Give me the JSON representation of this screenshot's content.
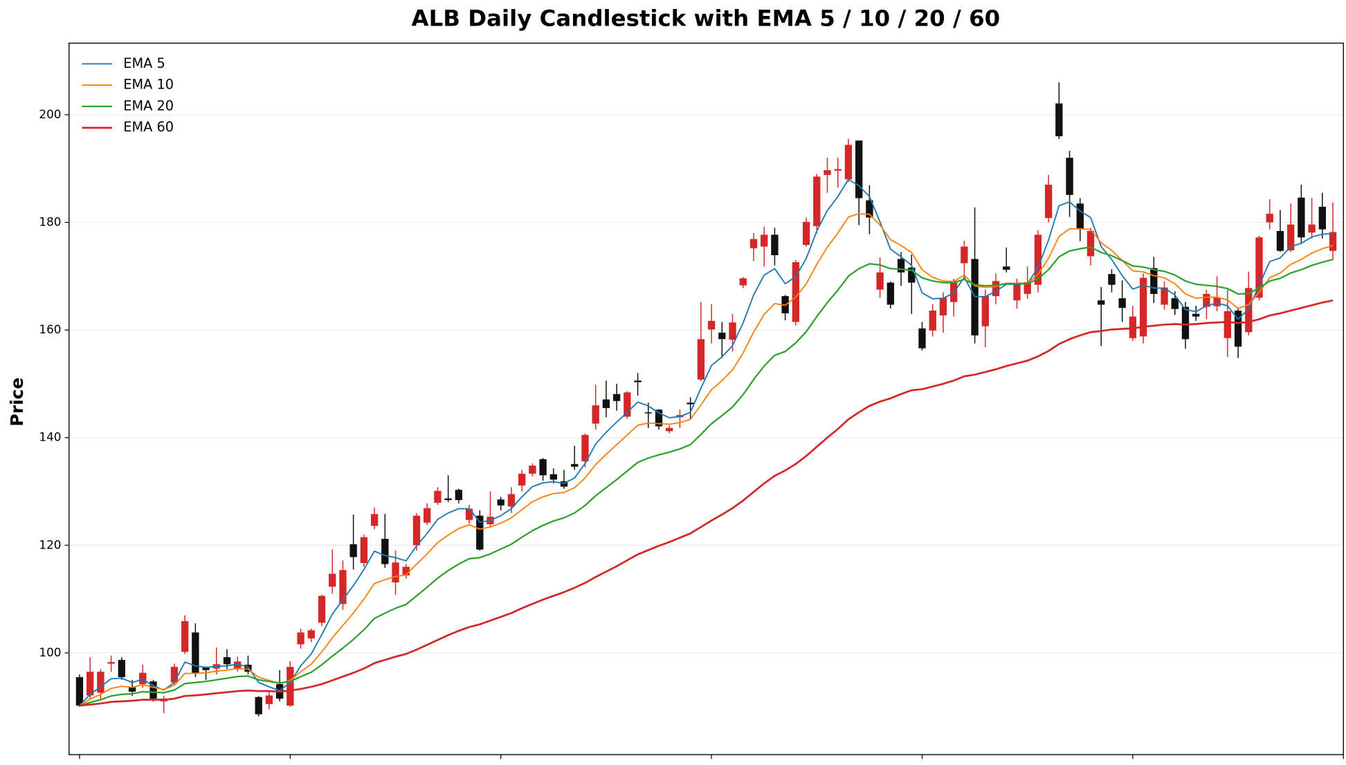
{
  "chart_data": {
    "type": "candlestick",
    "title": "ALB Daily Candlestick with EMA 5 / 10 / 20 / 60",
    "ylabel": "Price",
    "up_color": "#d62728",
    "down_color": "#111111",
    "open": [
      95.5,
      92.1,
      92.6,
      98,
      98.7,
      93.6,
      94.2,
      94.7,
      91,
      94.5,
      100.2,
      103.8,
      97.4,
      97.1,
      99.2,
      97,
      97.8,
      91.8,
      90.5,
      94.2,
      90.2,
      101.6,
      102.7,
      105.6,
      112.3,
      109.1,
      120.2,
      116.7,
      123.6,
      121.2,
      113.1,
      114.4,
      120,
      124.2,
      127.9,
      128.7,
      130.3,
      124.7,
      125.5,
      123.9,
      128.5,
      127.2,
      131.1,
      133.3,
      136,
      133.2,
      131.9,
      135.1,
      135.6,
      142.6,
      147.1,
      148.1,
      143.9,
      150.6,
      144.7,
      145.2,
      141.2,
      143.8,
      146.5,
      150.8,
      160.1,
      159.5,
      158.2,
      168.3,
      175.2,
      175.5,
      177.7,
      166.3,
      161.5,
      175.8,
      179.3,
      188.8,
      189.6,
      188,
      195.2,
      184.1,
      167.5,
      168.8,
      173.2,
      171.6,
      160.3,
      159.9,
      162.7,
      165.2,
      172.4,
      173.2,
      160.7,
      166.3,
      171.8,
      165.5,
      166.7,
      168.4,
      180.8,
      202.1,
      192,
      183.5,
      173.7,
      165.5,
      170.4,
      165.9,
      158.5,
      158.8,
      171.5,
      164.7,
      165.9,
      164.3,
      163,
      164.3,
      164.4,
      158.5,
      163.6,
      159.6,
      166,
      180,
      178.4,
      174.8,
      184.6,
      178.1,
      182.9,
      174.7
    ],
    "high": [
      96,
      99.2,
      97,
      99.5,
      99.2,
      95,
      97.8,
      95,
      92,
      98,
      107,
      105.5,
      97.5,
      101,
      100.7,
      99.3,
      99.5,
      92,
      93,
      96.8,
      98.5,
      104.5,
      104.5,
      110.8,
      119.2,
      117.2,
      125.7,
      122,
      127,
      125.8,
      119,
      116.5,
      126,
      127.8,
      130.8,
      133,
      130.5,
      127.5,
      126.5,
      130,
      129,
      130.8,
      134,
      135.2,
      136.2,
      134.3,
      134,
      138.5,
      140.8,
      149.8,
      150.6,
      150,
      148.6,
      152,
      146.5,
      145.3,
      142.3,
      145.2,
      147.5,
      165.2,
      164.8,
      161.5,
      163,
      169.8,
      178,
      179.2,
      179,
      166.5,
      173,
      180.9,
      189,
      192,
      192,
      195.5,
      195.2,
      186.9,
      173.5,
      169,
      174.5,
      174,
      161.5,
      164.8,
      167,
      169.5,
      176.6,
      182.8,
      167.5,
      170.5,
      175.3,
      169.5,
      171.8,
      178.5,
      188.8,
      206,
      193.3,
      184.5,
      179,
      168,
      171.3,
      169.2,
      164.5,
      170.5,
      173.6,
      169,
      167.2,
      165.2,
      164.5,
      167.5,
      170,
      167.5,
      164.2,
      170.8,
      177.5,
      184.3,
      182.3,
      183.5,
      187,
      184.5,
      185.5,
      183.7
    ],
    "low": [
      90,
      91.5,
      91.5,
      96.5,
      95,
      92,
      93.5,
      91,
      88.8,
      94,
      99.8,
      95.5,
      95,
      96,
      97,
      96.5,
      96,
      88.2,
      89.5,
      91,
      90,
      100.8,
      102,
      105,
      111,
      108,
      115.5,
      116,
      123,
      115.8,
      110.8,
      113.8,
      119,
      123.8,
      127.5,
      128,
      127.8,
      124,
      119,
      123.5,
      126.5,
      126,
      130,
      132.8,
      132,
      131.5,
      130.5,
      134,
      134.5,
      141.5,
      143.8,
      145,
      143.5,
      147.8,
      141.8,
      141.5,
      140.8,
      141.8,
      143.5,
      150.5,
      157.5,
      154.8,
      156,
      167.8,
      172.8,
      171.8,
      172,
      161.8,
      160.8,
      175.5,
      178,
      185.5,
      186.5,
      187.5,
      179.5,
      177.8,
      166,
      164,
      168.2,
      163,
      156.2,
      158.8,
      159.5,
      162.5,
      169.8,
      157.5,
      156.8,
      164.8,
      170.7,
      164,
      165.8,
      167,
      180,
      195.5,
      181,
      176.5,
      172,
      157,
      167,
      161.5,
      158,
      157.5,
      165,
      163.8,
      162.8,
      156.5,
      161.7,
      162,
      163.5,
      155,
      154.8,
      159,
      165.5,
      178.7,
      174.5,
      174.5,
      176,
      177,
      177,
      173
    ],
    "close": [
      90.2,
      96.5,
      96.5,
      98.3,
      95.5,
      92.8,
      96.3,
      91.5,
      91.5,
      97.4,
      105.9,
      96.3,
      96.8,
      97.9,
      97.9,
      98.4,
      96.5,
      88.6,
      92.1,
      91.5,
      97.4,
      103.8,
      104.2,
      110.6,
      114.7,
      115.4,
      117.8,
      121.5,
      125.8,
      116.5,
      116.8,
      116,
      125.5,
      126.9,
      130.1,
      128.4,
      128.4,
      126.8,
      119.2,
      125.3,
      127.4,
      129.5,
      133.3,
      134.8,
      133,
      132.2,
      130.9,
      134.6,
      140.5,
      146,
      145.5,
      146.8,
      148.4,
      150.3,
      144.6,
      142.1,
      141.8,
      144.2,
      146.2,
      158.3,
      161.7,
      158.3,
      161.4,
      169.6,
      176.9,
      177.7,
      173.9,
      163.1,
      172.6,
      180.1,
      188.5,
      189.7,
      189.9,
      194.4,
      184.5,
      180.9,
      170.7,
      164.7,
      170.7,
      168.8,
      156.6,
      163.6,
      166,
      168.8,
      175.5,
      159,
      166.3,
      169.1,
      171.2,
      168.6,
      168.9,
      177.7,
      187,
      196,
      185.1,
      178.7,
      178.4,
      164.7,
      168.4,
      164.1,
      162.5,
      169.7,
      166.7,
      167.9,
      163.9,
      158.3,
      162.5,
      166.7,
      166,
      163.5,
      156.9,
      167.8,
      177.2,
      181.6,
      174.7,
      179.6,
      177.2,
      179.6,
      178.7,
      178.2
    ],
    "series": [
      {
        "name": "EMA 5",
        "color": "#1f77b4",
        "width": 1.5,
        "values": [
          90.2,
          92.3,
          93.7,
          95.2,
          95.3,
          94.5,
          95.1,
          93.9,
          93.1,
          94.5,
          98.3,
          97.6,
          97.3,
          97.5,
          97.6,
          97.9,
          97.4,
          94.5,
          93.7,
          93.0,
          94.5,
          97.6,
          99.8,
          103.4,
          107.2,
          109.9,
          112.5,
          115.5,
          118.9,
          118.1,
          117.7,
          117.1,
          119.9,
          122.2,
          124.8,
          126.0,
          126.8,
          126.8,
          124.3,
          124.6,
          125.5,
          126.8,
          129.0,
          130.9,
          131.6,
          131.8,
          131.5,
          132.5,
          135.2,
          138.8,
          141.0,
          142.9,
          144.7,
          146.6,
          145.9,
          144.6,
          143.7,
          143.9,
          144.7,
          149.2,
          153.4,
          155.0,
          157.1,
          161.3,
          166.5,
          170.2,
          171.4,
          168.6,
          169.9,
          173.3,
          178.4,
          182.2,
          184.8,
          188.0,
          186.8,
          184.8,
          180.1,
          175.0,
          173.6,
          172.0,
          166.9,
          165.8,
          165.9,
          166.9,
          169.8,
          166.2,
          166.2,
          167.2,
          168.5,
          168.5,
          168.6,
          171.6,
          176.7,
          183.1,
          183.8,
          182.1,
          180.9,
          175.5,
          173.1,
          170.1,
          167.6,
          168.3,
          167.8,
          167.8,
          166.5,
          163.8,
          163.4,
          164.5,
          165.0,
          164.5,
          162.0,
          163.9,
          168.3,
          172.7,
          173.4,
          175.5,
          176.1,
          177.3,
          177.8,
          177.9
        ]
      },
      {
        "name": "EMA 10",
        "color": "#ff7f0e",
        "width": 1.5,
        "values": [
          90.2,
          91.4,
          92.3,
          93.4,
          93.8,
          93.6,
          94.1,
          93.6,
          93.2,
          94.0,
          96.2,
          96.2,
          96.3,
          96.6,
          96.8,
          97.1,
          97.0,
          95.5,
          94.9,
          94.3,
          94.9,
          96.5,
          97.9,
          100.2,
          102.8,
          105.1,
          107.4,
          110.0,
          112.9,
          113.6,
          114.2,
          114.5,
          116.5,
          118.4,
          120.5,
          121.9,
          123.1,
          123.8,
          123.0,
          123.4,
          124.1,
          125.1,
          126.6,
          128.1,
          129.0,
          129.6,
          129.8,
          130.7,
          132.5,
          135.0,
          136.9,
          138.7,
          140.5,
          142.3,
          142.7,
          142.6,
          142.5,
          142.8,
          143.4,
          146.1,
          148.9,
          150.6,
          152.6,
          155.7,
          159.6,
          162.9,
          164.9,
          164.6,
          166.1,
          168.6,
          172.2,
          175.4,
          178.0,
          181.0,
          181.6,
          181.5,
          179.5,
          176.8,
          175.7,
          174.4,
          171.2,
          169.8,
          169.1,
          169.0,
          170.2,
          168.2,
          167.9,
          168.1,
          168.7,
          168.7,
          168.7,
          170.3,
          173.3,
          177.4,
          178.8,
          178.8,
          178.7,
          176.2,
          174.8,
          172.9,
          171.0,
          170.8,
          170.1,
          169.7,
          168.6,
          166.7,
          165.9,
          166.1,
          166.1,
          165.6,
          164.0,
          164.7,
          167.0,
          169.7,
          170.6,
          172.2,
          173.1,
          174.3,
          175.1,
          175.7
        ]
      },
      {
        "name": "EMA 20",
        "color": "#2ca02c",
        "width": 1.8,
        "values": [
          90.2,
          90.8,
          91.3,
          92.0,
          92.3,
          92.4,
          92.8,
          92.7,
          92.6,
          93.1,
          94.3,
          94.5,
          94.7,
          95.0,
          95.3,
          95.6,
          95.7,
          95.0,
          94.7,
          94.4,
          94.7,
          95.6,
          96.4,
          97.8,
          99.4,
          100.9,
          102.5,
          104.3,
          106.4,
          107.4,
          108.3,
          109.0,
          110.6,
          112.2,
          113.9,
          115.3,
          116.5,
          117.5,
          117.7,
          118.4,
          119.3,
          120.2,
          121.5,
          122.7,
          123.7,
          124.5,
          125.1,
          126.0,
          127.4,
          129.2,
          130.7,
          132.2,
          133.8,
          135.4,
          136.2,
          136.8,
          137.3,
          137.9,
          138.7,
          140.6,
          142.6,
          144.1,
          145.7,
          148.0,
          150.8,
          153.3,
          155.3,
          156.0,
          157.6,
          159.7,
          162.5,
          165.1,
          167.4,
          170.0,
          171.4,
          172.3,
          172.1,
          171.4,
          171.3,
          171.1,
          169.7,
          169.1,
          168.8,
          168.8,
          169.4,
          168.4,
          168.2,
          168.3,
          168.6,
          168.6,
          168.6,
          169.5,
          171.2,
          173.6,
          174.7,
          175.1,
          175.4,
          174.4,
          173.8,
          172.9,
          171.9,
          171.7,
          171.2,
          170.9,
          170.2,
          169.1,
          168.5,
          168.3,
          168.1,
          167.7,
          166.7,
          166.8,
          167.8,
          169.1,
          169.6,
          170.6,
          171.2,
          172.0,
          172.6,
          173.1
        ]
      },
      {
        "name": "EMA 60",
        "color": "#d62728",
        "width": 2.2,
        "values": [
          90.2,
          90.4,
          90.6,
          90.9,
          91.0,
          91.1,
          91.3,
          91.3,
          91.3,
          91.5,
          92.0,
          92.1,
          92.3,
          92.5,
          92.7,
          92.9,
          93.0,
          92.9,
          92.9,
          92.8,
          93.0,
          93.3,
          93.7,
          94.2,
          94.9,
          95.6,
          96.3,
          97.1,
          98.1,
          98.7,
          99.3,
          99.8,
          100.6,
          101.5,
          102.4,
          103.3,
          104.1,
          104.8,
          105.3,
          106.0,
          106.7,
          107.4,
          108.3,
          109.1,
          109.9,
          110.6,
          111.3,
          112.1,
          113.0,
          114.1,
          115.1,
          116.1,
          117.2,
          118.3,
          119.1,
          119.9,
          120.6,
          121.4,
          122.2,
          123.4,
          124.6,
          125.7,
          126.9,
          128.3,
          129.9,
          131.5,
          132.9,
          133.9,
          135.1,
          136.6,
          138.3,
          140.0,
          141.6,
          143.4,
          144.7,
          145.9,
          146.7,
          147.3,
          148.1,
          148.8,
          149.0,
          149.5,
          150.0,
          150.6,
          151.4,
          151.7,
          152.2,
          152.7,
          153.3,
          153.8,
          154.3,
          155.1,
          156.1,
          157.4,
          158.3,
          159.0,
          159.6,
          159.8,
          160.1,
          160.2,
          160.3,
          160.6,
          160.8,
          161.0,
          161.1,
          161.0,
          161.1,
          161.3,
          161.4,
          161.5,
          161.3,
          161.5,
          162.0,
          162.7,
          163.1,
          163.6,
          164.1,
          164.6,
          165.1,
          165.5
        ]
      }
    ],
    "xlim": [
      -1,
      120
    ],
    "xticks": [
      0,
      20,
      40,
      60,
      80,
      100,
      120
    ],
    "ylim": [
      81.1,
      213.3
    ],
    "yticks": [
      100,
      120,
      140,
      160,
      180,
      200
    ],
    "grid": true,
    "legend": "upper left"
  }
}
